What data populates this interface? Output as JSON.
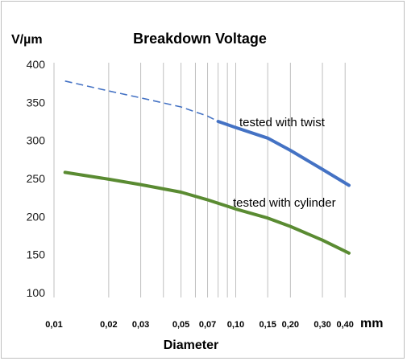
{
  "chart_data": {
    "type": "line",
    "title": "Breakdown Voltage",
    "xlabel": "Diameter",
    "x_unit": "mm",
    "y_unit": "V/µm",
    "x_scale": "log",
    "ylim": [
      100,
      400
    ],
    "yticks": [
      "400",
      "350",
      "300",
      "250",
      "200",
      "150",
      "100"
    ],
    "x_gridlines": [
      0.01,
      0.02,
      0.03,
      0.04,
      0.05,
      0.06,
      0.07,
      0.08,
      0.09,
      0.1,
      0.15,
      0.2,
      0.3,
      0.4
    ],
    "xticks": [
      {
        "value": 0.01,
        "label": "0,01"
      },
      {
        "value": 0.02,
        "label": "0,02"
      },
      {
        "value": 0.03,
        "label": "0,03"
      },
      {
        "value": 0.05,
        "label": "0,05"
      },
      {
        "value": 0.07,
        "label": "0,07"
      },
      {
        "value": 0.1,
        "label": "0,10"
      },
      {
        "value": 0.15,
        "label": "0,15"
      },
      {
        "value": 0.2,
        "label": "0,20"
      },
      {
        "value": 0.3,
        "label": "0,30"
      },
      {
        "value": 0.4,
        "label": "0,40"
      }
    ],
    "grid": {
      "vertical": true,
      "horizontal": false
    },
    "series": [
      {
        "name": "tested with twist",
        "color": "#4472c4",
        "dashed_to_x": 0.08,
        "points": [
          {
            "x": 0.0115,
            "y": 378
          },
          {
            "x": 0.02,
            "y": 365
          },
          {
            "x": 0.03,
            "y": 356
          },
          {
            "x": 0.05,
            "y": 344
          },
          {
            "x": 0.07,
            "y": 332
          },
          {
            "x": 0.08,
            "y": 325
          },
          {
            "x": 0.1,
            "y": 317
          },
          {
            "x": 0.15,
            "y": 303
          },
          {
            "x": 0.2,
            "y": 287
          },
          {
            "x": 0.3,
            "y": 262
          },
          {
            "x": 0.42,
            "y": 241
          }
        ]
      },
      {
        "name": "tested with cylinder",
        "color": "#5a8b32",
        "points": [
          {
            "x": 0.0115,
            "y": 258
          },
          {
            "x": 0.02,
            "y": 249
          },
          {
            "x": 0.03,
            "y": 242
          },
          {
            "x": 0.05,
            "y": 232
          },
          {
            "x": 0.07,
            "y": 222
          },
          {
            "x": 0.1,
            "y": 210
          },
          {
            "x": 0.15,
            "y": 198
          },
          {
            "x": 0.2,
            "y": 187
          },
          {
            "x": 0.3,
            "y": 169
          },
          {
            "x": 0.42,
            "y": 152
          }
        ]
      }
    ]
  }
}
